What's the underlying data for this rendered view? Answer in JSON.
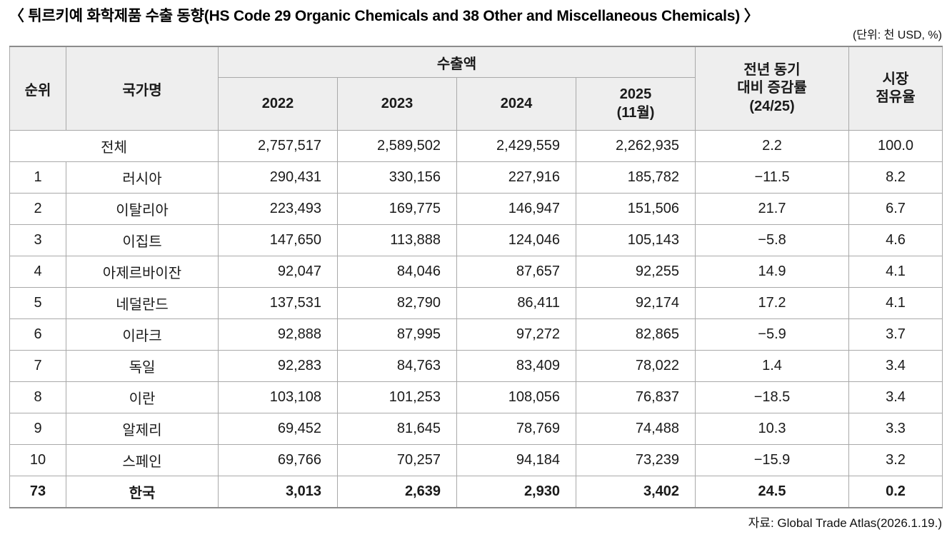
{
  "title": "〈 튀르키예 화학제품 수출 동향(HS Code 29 Organic Chemicals and 38 Other and Miscellaneous Chemicals) 〉",
  "unit_note": "(단위: 천 USD, %)",
  "source_note": "자료: Global Trade Atlas(2026.1.19.)",
  "table": {
    "headers": {
      "rank": "순위",
      "country": "국가명",
      "export_amount": "수출액",
      "years": [
        "2022",
        "2023",
        "2024",
        "2025\n(11월)"
      ],
      "yoy_change": "전년 동기\n대비 증감률\n(24/25)",
      "market_share": "시장\n점유율"
    },
    "rows": [
      {
        "rank": "",
        "country": "전체",
        "values": [
          "2,757,517",
          "2,589,502",
          "2,429,559",
          "2,262,935"
        ],
        "yoy": "2.2",
        "share": "100.0",
        "total": true,
        "emphasis": false
      },
      {
        "rank": "1",
        "country": "러시아",
        "values": [
          "290,431",
          "330,156",
          "227,916",
          "185,782"
        ],
        "yoy": "−11.5",
        "share": "8.2",
        "total": false,
        "emphasis": false
      },
      {
        "rank": "2",
        "country": "이탈리아",
        "values": [
          "223,493",
          "169,775",
          "146,947",
          "151,506"
        ],
        "yoy": "21.7",
        "share": "6.7",
        "total": false,
        "emphasis": false
      },
      {
        "rank": "3",
        "country": "이집트",
        "values": [
          "147,650",
          "113,888",
          "124,046",
          "105,143"
        ],
        "yoy": "−5.8",
        "share": "4.6",
        "total": false,
        "emphasis": false
      },
      {
        "rank": "4",
        "country": "아제르바이잔",
        "values": [
          "92,047",
          "84,046",
          "87,657",
          "92,255"
        ],
        "yoy": "14.9",
        "share": "4.1",
        "total": false,
        "emphasis": false
      },
      {
        "rank": "5",
        "country": "네덜란드",
        "values": [
          "137,531",
          "82,790",
          "86,411",
          "92,174"
        ],
        "yoy": "17.2",
        "share": "4.1",
        "total": false,
        "emphasis": false
      },
      {
        "rank": "6",
        "country": "이라크",
        "values": [
          "92,888",
          "87,995",
          "97,272",
          "82,865"
        ],
        "yoy": "−5.9",
        "share": "3.7",
        "total": false,
        "emphasis": false
      },
      {
        "rank": "7",
        "country": "독일",
        "values": [
          "92,283",
          "84,763",
          "83,409",
          "78,022"
        ],
        "yoy": "1.4",
        "share": "3.4",
        "total": false,
        "emphasis": false
      },
      {
        "rank": "8",
        "country": "이란",
        "values": [
          "103,108",
          "101,253",
          "108,056",
          "76,837"
        ],
        "yoy": "−18.5",
        "share": "3.4",
        "total": false,
        "emphasis": false
      },
      {
        "rank": "9",
        "country": "알제리",
        "values": [
          "69,452",
          "81,645",
          "78,769",
          "74,488"
        ],
        "yoy": "10.3",
        "share": "3.3",
        "total": false,
        "emphasis": false
      },
      {
        "rank": "10",
        "country": "스페인",
        "values": [
          "69,766",
          "70,257",
          "94,184",
          "73,239"
        ],
        "yoy": "−15.9",
        "share": "3.2",
        "total": false,
        "emphasis": false
      },
      {
        "rank": "73",
        "country": "한국",
        "values": [
          "3,013",
          "2,639",
          "2,930",
          "3,402"
        ],
        "yoy": "24.5",
        "share": "0.2",
        "total": false,
        "emphasis": true
      }
    ]
  }
}
